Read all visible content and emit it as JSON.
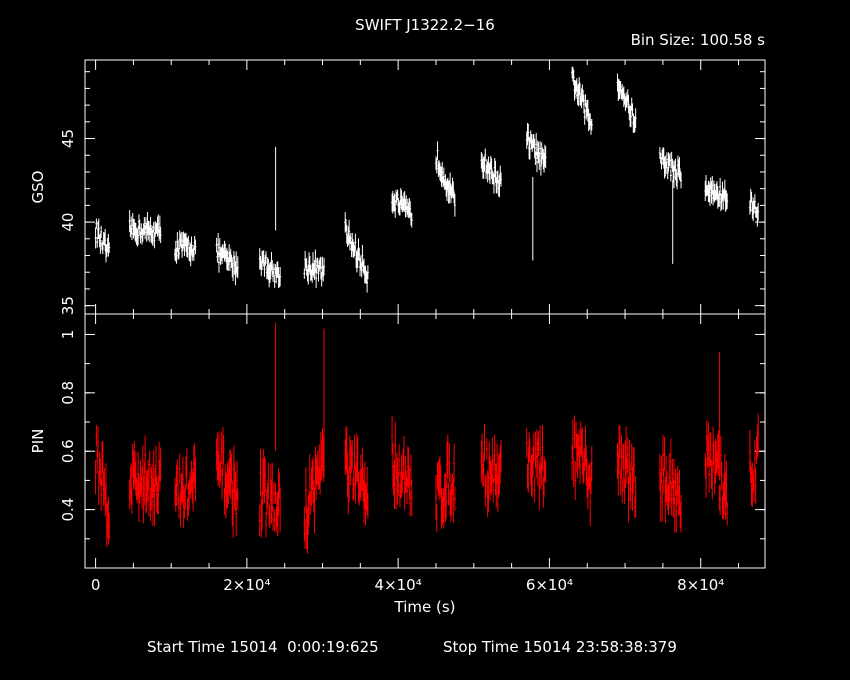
{
  "title": "SWIFT J1322.2−16",
  "bin_size": "Bin Size: 100.58 s",
  "footer": {
    "start": "Start Time 15014  0:00:19:625",
    "stop": "Stop Time 15014 23:58:38:379"
  },
  "colors": {
    "gso": "#ffffff",
    "pin": "#ff0000",
    "axes": "#ffffff"
  },
  "chart_data": [
    {
      "type": "scatter",
      "name": "GSO panel",
      "xlabel": "",
      "ylabel": "GSO",
      "xlim": [
        -1400,
        88500
      ],
      "ylim": [
        34.5,
        49.7
      ],
      "y_ticks": [
        35,
        40,
        45
      ],
      "error_bars": true,
      "segments": [
        {
          "x": [
            0,
            1800
          ],
          "y": [
            39.5,
            38.0
          ]
        },
        {
          "x": [
            4500,
            8600
          ],
          "y": [
            39.6,
            39.4
          ]
        },
        {
          "x": [
            10500,
            13200
          ],
          "y": [
            38.5,
            38.5
          ]
        },
        {
          "x": [
            16000,
            18800
          ],
          "y": [
            38.2,
            37.3
          ]
        },
        {
          "x": [
            21700,
            24400
          ],
          "y": [
            37.8,
            36.7
          ]
        },
        {
          "x": [
            27600,
            30200
          ],
          "y": [
            37.4,
            37.0
          ]
        },
        {
          "x": [
            33000,
            36000
          ],
          "y": [
            39.5,
            36.8
          ]
        },
        {
          "x": [
            39200,
            41800
          ],
          "y": [
            41.5,
            40.3
          ]
        },
        {
          "x": [
            45000,
            47500
          ],
          "y": [
            44.0,
            41.2
          ]
        },
        {
          "x": [
            51000,
            53600
          ],
          "y": [
            43.8,
            42.3
          ]
        },
        {
          "x": [
            57000,
            59500
          ],
          "y": [
            45.0,
            43.4
          ]
        },
        {
          "x": [
            63000,
            65600
          ],
          "y": [
            48.7,
            45.8
          ]
        },
        {
          "x": [
            69000,
            71400
          ],
          "y": [
            48.5,
            46.0
          ]
        },
        {
          "x": [
            74600,
            77400
          ],
          "y": [
            43.8,
            42.8
          ]
        },
        {
          "x": [
            80600,
            83500
          ],
          "y": [
            42.0,
            41.4
          ]
        },
        {
          "x": [
            86500,
            87600
          ],
          "y": [
            41.2,
            40.5
          ]
        }
      ],
      "outliers": [
        {
          "x": 23800,
          "y": 42.0
        },
        {
          "x": 76300,
          "y": 40.0
        },
        {
          "x": 57800,
          "y": 40.2
        }
      ]
    },
    {
      "type": "scatter",
      "name": "PIN panel",
      "xlabel": "Time (s)",
      "ylabel": "PIN",
      "xlim": [
        -1400,
        88500
      ],
      "ylim": [
        0.2,
        1.07
      ],
      "y_ticks": [
        0.4,
        0.6,
        0.8,
        1
      ],
      "x_ticks": [
        {
          "value": 0,
          "label": "0"
        },
        {
          "value": 20000,
          "label": "2×10⁴"
        },
        {
          "value": 40000,
          "label": "4×10⁴"
        },
        {
          "value": 60000,
          "label": "6×10⁴"
        },
        {
          "value": 80000,
          "label": "8×10⁴"
        }
      ],
      "error_bars": true,
      "segments": [
        {
          "x": [
            0,
            1800
          ],
          "y": [
            0.6,
            0.4
          ]
        },
        {
          "x": [
            4500,
            8600
          ],
          "y": [
            0.5,
            0.5
          ]
        },
        {
          "x": [
            10500,
            13200
          ],
          "y": [
            0.45,
            0.48
          ]
        },
        {
          "x": [
            16000,
            18800
          ],
          "y": [
            0.55,
            0.45
          ]
        },
        {
          "x": [
            21700,
            24400
          ],
          "y": [
            0.45,
            0.4
          ]
        },
        {
          "x": [
            27600,
            30200
          ],
          "y": [
            0.38,
            0.58
          ]
        },
        {
          "x": [
            33000,
            36000
          ],
          "y": [
            0.55,
            0.45
          ]
        },
        {
          "x": [
            39200,
            41800
          ],
          "y": [
            0.58,
            0.45
          ]
        },
        {
          "x": [
            45000,
            47500
          ],
          "y": [
            0.45,
            0.52
          ]
        },
        {
          "x": [
            51000,
            53600
          ],
          "y": [
            0.55,
            0.52
          ]
        },
        {
          "x": [
            57000,
            59500
          ],
          "y": [
            0.58,
            0.52
          ]
        },
        {
          "x": [
            63000,
            65600
          ],
          "y": [
            0.6,
            0.5
          ]
        },
        {
          "x": [
            69000,
            71400
          ],
          "y": [
            0.58,
            0.48
          ]
        },
        {
          "x": [
            74600,
            77400
          ],
          "y": [
            0.52,
            0.45
          ]
        },
        {
          "x": [
            80600,
            83500
          ],
          "y": [
            0.58,
            0.47
          ]
        },
        {
          "x": [
            86500,
            87600
          ],
          "y": [
            0.52,
            0.58
          ]
        }
      ],
      "outliers": [
        {
          "x": 23800,
          "y": 0.82
        },
        {
          "x": 30200,
          "y": 0.8
        },
        {
          "x": 82500,
          "y": 0.72
        }
      ]
    }
  ]
}
